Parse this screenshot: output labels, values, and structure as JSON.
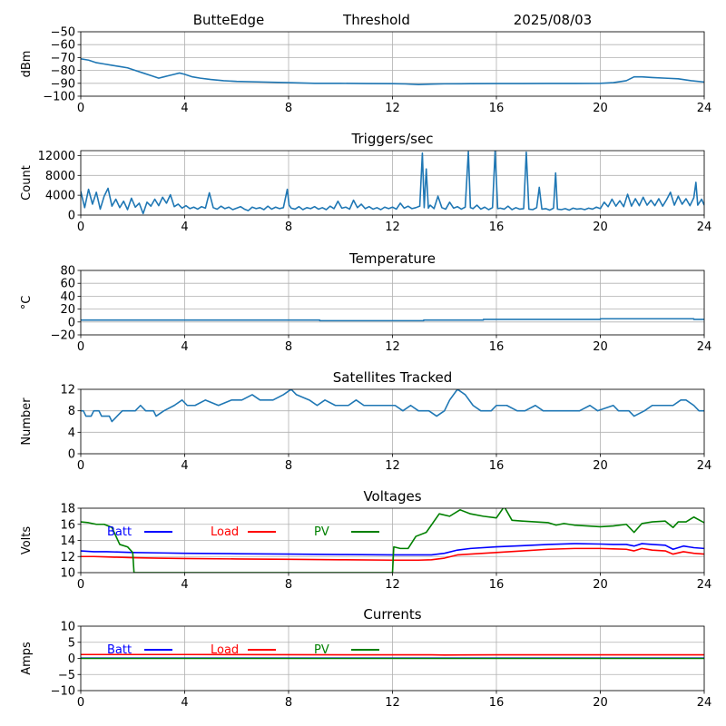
{
  "header": {
    "station": "ButteEdge",
    "mode": "Threshold",
    "date": "2025/08/03"
  },
  "chart_data": [
    {
      "id": "threshold",
      "type": "line",
      "title": "",
      "xlabel": "",
      "ylabel": "dBm",
      "xlim": [
        0,
        24
      ],
      "ylim": [
        -100,
        -50
      ],
      "xticks": [
        0,
        4,
        8,
        12,
        16,
        20,
        24
      ],
      "yticks": [
        -100,
        -90,
        -80,
        -70,
        -60,
        -50
      ],
      "grid": true,
      "series": [
        {
          "name": "",
          "color": "#1f77b4",
          "x": [
            0,
            0.3,
            0.6,
            0.9,
            1.2,
            1.5,
            1.8,
            2.1,
            2.4,
            2.7,
            3.0,
            3.2,
            3.4,
            3.6,
            3.8,
            4.0,
            4.3,
            4.6,
            5.0,
            5.5,
            6.0,
            7.0,
            8.0,
            9.0,
            10.0,
            11.0,
            12.0,
            12.5,
            13.0,
            13.5,
            14.0,
            15.0,
            16.0,
            17.0,
            18.0,
            19.0,
            20.0,
            20.5,
            21.0,
            21.3,
            21.6,
            22.0,
            22.5,
            23.0,
            23.5,
            24.0
          ],
          "y": [
            -71,
            -72,
            -74,
            -75,
            -76,
            -77,
            -78,
            -80,
            -82,
            -84,
            -86,
            -85,
            -84,
            -83,
            -82,
            -83,
            -85,
            -86,
            -87,
            -88,
            -88.5,
            -89,
            -89.5,
            -90,
            -90,
            -90.2,
            -90.3,
            -90.5,
            -91,
            -90.6,
            -90.4,
            -90.3,
            -90.2,
            -90.2,
            -90.1,
            -90.1,
            -90,
            -89.5,
            -88,
            -85,
            -85,
            -85.5,
            -86,
            -86.5,
            -88,
            -89
          ]
        }
      ]
    },
    {
      "id": "triggers",
      "type": "line",
      "title": "Triggers/sec",
      "xlabel": "",
      "ylabel": "Count",
      "xlim": [
        0,
        24
      ],
      "ylim": [
        0,
        13000
      ],
      "xticks": [
        0,
        4,
        8,
        12,
        16,
        20,
        24
      ],
      "yticks": [
        0,
        4000,
        8000,
        12000
      ],
      "grid": true,
      "series": [
        {
          "name": "",
          "color": "#1f77b4",
          "x": [
            0,
            0.15,
            0.3,
            0.45,
            0.6,
            0.75,
            0.9,
            1.05,
            1.2,
            1.35,
            1.5,
            1.65,
            1.8,
            1.95,
            2.1,
            2.25,
            2.4,
            2.55,
            2.7,
            2.85,
            3.0,
            3.15,
            3.3,
            3.45,
            3.6,
            3.75,
            3.9,
            4.05,
            4.2,
            4.35,
            4.5,
            4.65,
            4.8,
            4.95,
            5.1,
            5.25,
            5.4,
            5.55,
            5.7,
            5.85,
            6.0,
            6.15,
            6.3,
            6.45,
            6.6,
            6.75,
            6.9,
            7.05,
            7.2,
            7.35,
            7.5,
            7.65,
            7.8,
            7.95,
            8.02,
            8.1,
            8.25,
            8.4,
            8.55,
            8.7,
            8.85,
            9.0,
            9.15,
            9.3,
            9.45,
            9.6,
            9.75,
            9.9,
            10.05,
            10.2,
            10.35,
            10.5,
            10.65,
            10.8,
            10.95,
            11.1,
            11.25,
            11.4,
            11.55,
            11.7,
            11.85,
            12.0,
            12.15,
            12.3,
            12.45,
            12.6,
            12.75,
            12.9,
            13.05,
            13.15,
            13.22,
            13.3,
            13.38,
            13.45,
            13.6,
            13.75,
            13.9,
            14.05,
            14.2,
            14.35,
            14.5,
            14.65,
            14.8,
            14.92,
            15.0,
            15.1,
            15.25,
            15.4,
            15.55,
            15.7,
            15.85,
            15.95,
            16.05,
            16.15,
            16.3,
            16.45,
            16.6,
            16.75,
            16.9,
            17.05,
            17.15,
            17.25,
            17.4,
            17.55,
            17.65,
            17.75,
            17.9,
            18.05,
            18.2,
            18.28,
            18.35,
            18.5,
            18.65,
            18.8,
            18.95,
            19.1,
            19.25,
            19.4,
            19.55,
            19.7,
            19.85,
            20.0,
            20.15,
            20.3,
            20.45,
            20.6,
            20.75,
            20.9,
            21.05,
            21.2,
            21.35,
            21.5,
            21.65,
            21.8,
            21.95,
            22.1,
            22.25,
            22.4,
            22.55,
            22.7,
            22.85,
            23.0,
            23.15,
            23.3,
            23.45,
            23.6,
            23.68,
            23.75,
            23.9,
            24.0
          ],
          "y": [
            4800,
            1500,
            5200,
            2200,
            4600,
            1200,
            3800,
            5400,
            1800,
            3200,
            1500,
            2800,
            1100,
            3400,
            1600,
            2400,
            300,
            2600,
            1800,
            3200,
            1900,
            3600,
            2400,
            4100,
            1700,
            2200,
            1400,
            1900,
            1300,
            1600,
            1200,
            1700,
            1400,
            4500,
            1500,
            1200,
            1800,
            1300,
            1600,
            1100,
            1400,
            1700,
            1200,
            900,
            1600,
            1300,
            1500,
            1100,
            1800,
            1200,
            1600,
            1300,
            1500,
            5200,
            2000,
            1400,
            1200,
            1700,
            1100,
            1500,
            1300,
            1700,
            1200,
            1500,
            1100,
            1800,
            1300,
            2800,
            1400,
            1600,
            1200,
            3000,
            1500,
            2200,
            1300,
            1700,
            1200,
            1500,
            1100,
            1600,
            1300,
            1600,
            1200,
            2400,
            1400,
            1800,
            1300,
            1500,
            1800,
            12500,
            1500,
            9300,
            1400,
            2000,
            1300,
            3800,
            1500,
            1200,
            2600,
            1400,
            1700,
            1200,
            1600,
            12800,
            1500,
            1300,
            2000,
            1200,
            1600,
            1100,
            1500,
            12900,
            1300,
            1400,
            1200,
            1800,
            1100,
            1500,
            1200,
            1300,
            12700,
            1200,
            1100,
            1500,
            5600,
            1200,
            1300,
            1000,
            1400,
            8500,
            1200,
            1100,
            1300,
            1000,
            1400,
            1200,
            1300,
            1100,
            1400,
            1200,
            1600,
            1300,
            2600,
            1700,
            3200,
            1800,
            2900,
            1700,
            4200,
            1800,
            3300,
            1900,
            3600,
            2000,
            3000,
            1900,
            3300,
            1800,
            3100,
            4600,
            2000,
            3800,
            2200,
            3300,
            1900,
            3500,
            6600,
            2000,
            3200,
            2000
          ]
        }
      ]
    },
    {
      "id": "temperature",
      "type": "line",
      "title": "Temperature",
      "xlabel": "",
      "ylabel": "°C",
      "xlim": [
        0,
        24
      ],
      "ylim": [
        -20,
        80
      ],
      "xticks": [
        0,
        4,
        8,
        12,
        16,
        20,
        24
      ],
      "yticks": [
        -20,
        0,
        20,
        40,
        60,
        80
      ],
      "grid": true,
      "series": [
        {
          "name": "",
          "color": "#1f77b4",
          "x": [
            0,
            9.2,
            9.2,
            13.2,
            13.2,
            15.5,
            15.5,
            20.0,
            20.0,
            23.6,
            23.6,
            24.0
          ],
          "y": [
            3,
            3,
            2,
            2,
            3,
            3,
            4,
            4,
            5,
            5,
            4,
            4
          ]
        }
      ]
    },
    {
      "id": "satellites",
      "type": "line",
      "title": "Satellites Tracked",
      "xlabel": "",
      "ylabel": "Number",
      "xlim": [
        0,
        24
      ],
      "ylim": [
        0,
        12
      ],
      "xticks": [
        0,
        4,
        8,
        12,
        16,
        20,
        24
      ],
      "yticks": [
        0,
        4,
        8,
        12
      ],
      "grid": true,
      "series": [
        {
          "name": "",
          "color": "#1f77b4",
          "x": [
            0,
            0.1,
            0.2,
            0.4,
            0.5,
            0.7,
            0.8,
            1.1,
            1.2,
            1.4,
            1.6,
            2.1,
            2.3,
            2.5,
            2.8,
            2.9,
            3.2,
            3.6,
            3.9,
            4.1,
            4.4,
            4.8,
            5.3,
            5.8,
            6.2,
            6.6,
            6.9,
            7.4,
            7.8,
            8.1,
            8.3,
            8.8,
            9.1,
            9.4,
            9.8,
            10.3,
            10.6,
            10.9,
            11.3,
            11.7,
            12.1,
            12.4,
            12.7,
            13.0,
            13.4,
            13.7,
            14.0,
            14.2,
            14.5,
            14.8,
            15.1,
            15.4,
            15.8,
            16.0,
            16.4,
            16.8,
            17.1,
            17.5,
            17.8,
            18.3,
            18.7,
            19.2,
            19.6,
            19.9,
            20.5,
            20.7,
            21.1,
            21.3,
            21.7,
            22.0,
            22.4,
            22.8,
            23.1,
            23.3,
            23.6,
            23.8,
            24.0
          ],
          "y": [
            8,
            8,
            7,
            7,
            8,
            8,
            7,
            7,
            6,
            7,
            8,
            8,
            9,
            8,
            8,
            7,
            8,
            9,
            10,
            9,
            9,
            10,
            9,
            10,
            10,
            11,
            10,
            10,
            11,
            12,
            11,
            10,
            9,
            10,
            9,
            9,
            10,
            9,
            9,
            9,
            9,
            8,
            9,
            8,
            8,
            7,
            8,
            10,
            12,
            11,
            9,
            8,
            8,
            9,
            9,
            8,
            8,
            9,
            8,
            8,
            8,
            8,
            9,
            8,
            9,
            8,
            8,
            7,
            8,
            9,
            9,
            9,
            10,
            10,
            9,
            8,
            8
          ]
        }
      ]
    },
    {
      "id": "voltages",
      "type": "line",
      "title": "Voltages",
      "xlabel": "",
      "ylabel": "Volts",
      "xlim": [
        0,
        24
      ],
      "ylim": [
        10,
        18
      ],
      "xticks": [
        0,
        4,
        8,
        12,
        16,
        20,
        24
      ],
      "yticks": [
        10,
        12,
        14,
        16,
        18
      ],
      "grid": true,
      "legend": "top-left",
      "series": [
        {
          "name": "Batt",
          "color": "#0000ff",
          "x": [
            0,
            0.5,
            1,
            2,
            3,
            4,
            6,
            8,
            10,
            12,
            13,
            13.5,
            14,
            14.5,
            15,
            16,
            17,
            18,
            19,
            20,
            20.5,
            21,
            21.3,
            21.6,
            22,
            22.5,
            22.8,
            23.2,
            23.6,
            24
          ],
          "y": [
            12.7,
            12.6,
            12.6,
            12.5,
            12.45,
            12.4,
            12.35,
            12.3,
            12.25,
            12.2,
            12.2,
            12.2,
            12.4,
            12.8,
            13.0,
            13.2,
            13.35,
            13.5,
            13.6,
            13.55,
            13.5,
            13.5,
            13.3,
            13.6,
            13.5,
            13.4,
            12.9,
            13.3,
            13.1,
            13.0
          ]
        },
        {
          "name": "Load",
          "color": "#ff0000",
          "x": [
            0,
            0.5,
            1,
            2,
            3,
            4,
            6,
            8,
            10,
            12,
            13,
            13.5,
            14,
            14.5,
            15,
            16,
            17,
            18,
            19,
            20,
            20.5,
            21,
            21.3,
            21.6,
            22,
            22.5,
            22.8,
            23.2,
            23.6,
            24
          ],
          "y": [
            12.0,
            12.0,
            11.95,
            11.85,
            11.8,
            11.75,
            11.7,
            11.65,
            11.6,
            11.55,
            11.55,
            11.6,
            11.8,
            12.2,
            12.3,
            12.5,
            12.7,
            12.9,
            13.0,
            13.0,
            12.95,
            12.9,
            12.7,
            13.0,
            12.8,
            12.7,
            12.3,
            12.6,
            12.4,
            12.3
          ]
        },
        {
          "name": "PV",
          "color": "#008000",
          "x": [
            0,
            0.3,
            0.6,
            0.9,
            1.2,
            1.5,
            1.8,
            2.0,
            2.05,
            12.0,
            12.05,
            12.3,
            12.6,
            12.9,
            13.3,
            13.8,
            14.2,
            14.6,
            15.0,
            15.5,
            16.0,
            16.3,
            16.6,
            17.0,
            17.5,
            18.0,
            18.3,
            18.6,
            19.0,
            19.5,
            20.0,
            20.5,
            21.0,
            21.3,
            21.6,
            22.0,
            22.5,
            22.8,
            23.0,
            23.3,
            23.6,
            24.0
          ],
          "y": [
            16.3,
            16.2,
            16.0,
            16.0,
            15.6,
            13.5,
            13.2,
            12.5,
            10.0,
            10.0,
            13.2,
            13.0,
            13.0,
            14.5,
            15.0,
            17.3,
            17.0,
            17.8,
            17.3,
            17.0,
            16.8,
            18.2,
            16.5,
            16.4,
            16.3,
            16.2,
            15.9,
            16.1,
            15.9,
            15.8,
            15.7,
            15.8,
            16.0,
            15.0,
            16.1,
            16.3,
            16.4,
            15.6,
            16.3,
            16.3,
            16.9,
            16.2
          ]
        }
      ]
    },
    {
      "id": "currents",
      "type": "line",
      "title": "Currents",
      "xlabel": "",
      "ylabel": "Amps",
      "xlim": [
        0,
        24
      ],
      "ylim": [
        -10,
        10
      ],
      "xticks": [
        0,
        4,
        8,
        12,
        16,
        20,
        24
      ],
      "yticks": [
        -10,
        -5,
        0,
        5,
        10
      ],
      "grid": true,
      "legend": "top-left",
      "series": [
        {
          "name": "Batt",
          "color": "#0000ff",
          "x": [
            0,
            24
          ],
          "y": [
            0.1,
            0.1
          ]
        },
        {
          "name": "Load",
          "color": "#ff0000",
          "x": [
            0,
            4,
            8,
            12,
            13.5,
            14,
            16,
            20,
            24
          ],
          "y": [
            1.2,
            1.2,
            1.15,
            1.1,
            1.1,
            1.05,
            1.1,
            1.1,
            1.1
          ]
        },
        {
          "name": "PV",
          "color": "#008000",
          "x": [
            0,
            24
          ],
          "y": [
            0.0,
            0.0
          ]
        }
      ]
    }
  ]
}
